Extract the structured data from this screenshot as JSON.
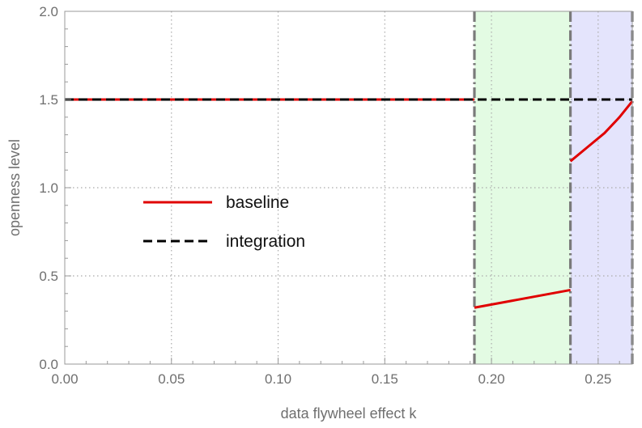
{
  "chart_data": {
    "type": "line",
    "xlabel": "data flywheel effect k",
    "ylabel": "openness level",
    "xlim": [
      0,
      0.266
    ],
    "ylim": [
      0,
      2.0
    ],
    "x_ticks": [
      0,
      0.05,
      0.1,
      0.15,
      0.2,
      0.25
    ],
    "x_tick_labels": [
      "0.00",
      "0.05",
      "0.10",
      "0.15",
      "0.20",
      "0.25"
    ],
    "y_ticks": [
      0,
      0.5,
      1.0,
      1.5,
      2.0
    ],
    "y_tick_labels": [
      "0.0",
      "0.5",
      "1.0",
      "1.5",
      "2.0"
    ],
    "grid": true,
    "legend_position": "center-left",
    "regions": [
      {
        "x_start": 0.192,
        "x_end": 0.237,
        "color": "#e3fbe3"
      },
      {
        "x_start": 0.237,
        "x_end": 0.266,
        "color": "#e4e4fc"
      }
    ],
    "vlines": [
      0.192,
      0.237,
      0.266
    ],
    "series": [
      {
        "name": "baseline",
        "color": "#e00000",
        "style": "solid",
        "segments": [
          {
            "x": [
              0,
              0.192
            ],
            "y": [
              1.5,
              1.5
            ]
          },
          {
            "x": [
              0.192,
              0.237
            ],
            "y": [
              0.32,
              0.42
            ]
          },
          {
            "x": [
              0.237,
              0.245,
              0.253,
              0.26,
              0.266
            ],
            "y": [
              1.15,
              1.23,
              1.31,
              1.4,
              1.49
            ]
          }
        ]
      },
      {
        "name": "integration",
        "color": "#000000",
        "style": "dashed",
        "segments": [
          {
            "x": [
              0,
              0.266
            ],
            "y": [
              1.5,
              1.5
            ]
          }
        ]
      }
    ]
  }
}
